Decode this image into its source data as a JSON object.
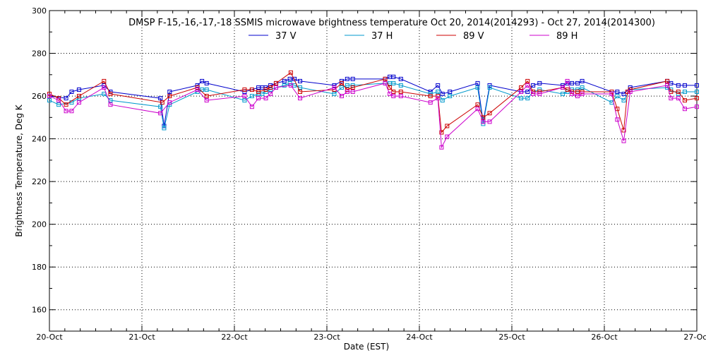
{
  "chart_data": {
    "type": "line",
    "title": "DMSP F-15,-16,-17,-18 SSMIS microwave brightness temperature Oct 20, 2014(2014293) - Oct 27, 2014(2014300)",
    "xlabel": "Date (EST)",
    "ylabel": "Brightness Temperature, Deg K",
    "xlim": [
      0,
      7
    ],
    "ylim": [
      150,
      300
    ],
    "yticks": [
      160,
      180,
      200,
      220,
      240,
      260,
      280,
      300
    ],
    "xticks": [
      0,
      1,
      2,
      3,
      4,
      5,
      6,
      7
    ],
    "xtick_labels": [
      "20-Oct",
      "21-Oct",
      "22-Oct",
      "23-Oct",
      "24-Oct",
      "25-Oct",
      "26-Oct",
      "27-Oct"
    ],
    "grid": true,
    "legend_position": "top-center",
    "series": [
      {
        "name": "37 V",
        "color": "#0000cc",
        "x": [
          0.0,
          0.18,
          0.24,
          0.32,
          0.59,
          0.66,
          1.2,
          1.24,
          1.3,
          1.6,
          1.65,
          1.7,
          2.11,
          2.19,
          2.26,
          2.3,
          2.34,
          2.39,
          2.45,
          2.54,
          2.6,
          2.65,
          2.71,
          3.08,
          3.16,
          3.22,
          3.28,
          3.63,
          3.68,
          3.72,
          3.8,
          4.12,
          4.2,
          4.25,
          4.33,
          4.63,
          4.69,
          4.76,
          5.1,
          5.17,
          5.23,
          5.3,
          5.55,
          5.6,
          5.65,
          5.71,
          5.76,
          6.08,
          6.14,
          6.21,
          6.28,
          6.68,
          6.72,
          6.8,
          6.87,
          7.0
        ],
        "y": [
          260,
          259,
          262,
          263,
          265,
          262,
          259,
          246,
          262,
          265,
          267,
          266,
          262,
          263,
          264,
          264,
          264,
          265,
          266,
          267,
          268,
          268,
          267,
          265,
          267,
          268,
          268,
          268,
          269,
          269,
          268,
          262,
          265,
          261,
          262,
          266,
          248,
          265,
          262,
          262,
          265,
          266,
          265,
          266,
          266,
          266,
          267,
          262,
          262,
          261,
          264,
          267,
          266,
          265,
          265,
          265
        ]
      },
      {
        "name": "37 H",
        "color": "#0099cc",
        "x": [
          0.0,
          0.1,
          0.24,
          0.32,
          0.59,
          0.66,
          1.2,
          1.24,
          1.3,
          1.6,
          1.65,
          1.7,
          2.11,
          2.19,
          2.26,
          2.3,
          2.34,
          2.39,
          2.45,
          2.54,
          2.6,
          2.65,
          2.71,
          3.08,
          3.16,
          3.22,
          3.28,
          3.63,
          3.68,
          3.72,
          3.8,
          4.12,
          4.2,
          4.25,
          4.33,
          4.63,
          4.69,
          4.76,
          5.1,
          5.17,
          5.23,
          5.3,
          5.55,
          5.6,
          5.65,
          5.71,
          5.76,
          6.08,
          6.14,
          6.21,
          6.28,
          6.68,
          6.72,
          6.8,
          6.87,
          7.0
        ],
        "y": [
          258,
          256,
          257,
          259,
          261,
          258,
          255,
          245,
          256,
          262,
          263,
          263,
          258,
          260,
          261,
          261,
          262,
          263,
          264,
          265,
          266,
          265,
          264,
          261,
          264,
          265,
          265,
          266,
          266,
          266,
          265,
          261,
          262,
          258,
          260,
          264,
          247,
          264,
          259,
          259,
          262,
          263,
          261,
          262,
          263,
          263,
          264,
          257,
          260,
          258,
          263,
          264,
          263,
          261,
          262,
          262
        ]
      },
      {
        "name": "89 V",
        "color": "#cc0000",
        "x": [
          0.0,
          0.1,
          0.18,
          0.32,
          0.59,
          0.66,
          1.22,
          1.3,
          1.6,
          1.7,
          2.11,
          2.19,
          2.26,
          2.34,
          2.39,
          2.45,
          2.61,
          2.71,
          3.08,
          3.16,
          3.22,
          3.28,
          3.63,
          3.68,
          3.72,
          3.8,
          4.12,
          4.2,
          4.24,
          4.3,
          4.63,
          4.69,
          4.76,
          5.1,
          5.17,
          5.23,
          5.3,
          5.55,
          5.6,
          5.65,
          5.71,
          5.76,
          6.08,
          6.14,
          6.21,
          6.25,
          6.28,
          6.68,
          6.72,
          6.8,
          6.87,
          7.0
        ],
        "y": [
          261,
          259,
          256,
          260,
          267,
          261,
          257,
          260,
          264,
          260,
          263,
          263,
          262,
          263,
          264,
          266,
          271,
          262,
          263,
          266,
          263,
          264,
          268,
          264,
          262,
          262,
          260,
          260,
          243,
          246,
          256,
          250,
          252,
          264,
          267,
          262,
          262,
          264,
          263,
          262,
          262,
          262,
          262,
          254,
          244,
          262,
          263,
          267,
          262,
          262,
          258,
          259
        ]
      },
      {
        "name": "89 H",
        "color": "#cc00cc",
        "x": [
          0.0,
          0.1,
          0.18,
          0.24,
          0.32,
          0.59,
          0.66,
          1.2,
          1.3,
          1.6,
          1.7,
          2.11,
          2.19,
          2.26,
          2.34,
          2.39,
          2.45,
          2.61,
          2.71,
          3.08,
          3.16,
          3.22,
          3.28,
          3.63,
          3.68,
          3.72,
          3.8,
          4.12,
          4.2,
          4.24,
          4.3,
          4.63,
          4.69,
          4.76,
          5.1,
          5.17,
          5.23,
          5.3,
          5.55,
          5.6,
          5.65,
          5.71,
          5.76,
          6.08,
          6.14,
          6.21,
          6.28,
          6.68,
          6.72,
          6.8,
          6.87,
          7.0
        ],
        "y": [
          260,
          258,
          253,
          253,
          257,
          264,
          256,
          252,
          257,
          263,
          258,
          260,
          255,
          259,
          259,
          261,
          264,
          265,
          259,
          264,
          260,
          262,
          262,
          266,
          261,
          260,
          260,
          257,
          259,
          236,
          241,
          254,
          248,
          248,
          262,
          265,
          261,
          261,
          264,
          267,
          261,
          260,
          261,
          261,
          249,
          239,
          262,
          265,
          259,
          259,
          254,
          255
        ]
      }
    ]
  }
}
